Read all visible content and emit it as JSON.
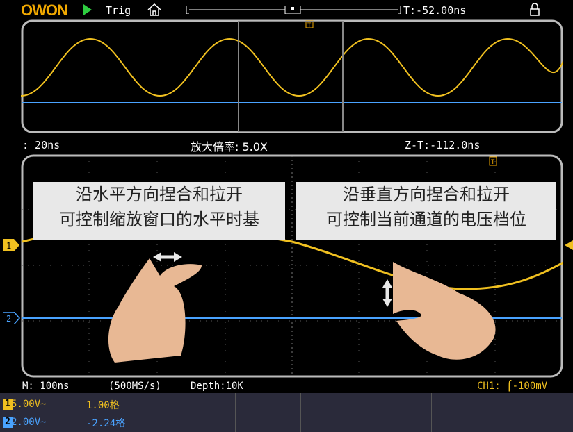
{
  "topbar": {
    "logo": "OWON",
    "trigger_state_label": "Trig",
    "time_delay": "T:-52.00ns"
  },
  "zoom_info": {
    "zoom_timebase": ": 20ns",
    "magnification": "放大倍率: 5.0X",
    "zoom_time": "Z-T:-112.0ns"
  },
  "overlays": {
    "left_line1": "沿水平方向捏合和拉开",
    "left_line2": "可控制缩放窗口的水平时基",
    "right_line1": "沿垂直方向捏合和拉开",
    "right_line2": "可控制当前通道的电压档位"
  },
  "bottom": {
    "main_timebase": "M: 100ns",
    "sample_rate": "(500MS/s)",
    "depth": "Depth:10K",
    "trigger_info": "CH1: ⌠-100mV"
  },
  "channels": [
    {
      "id": "1",
      "volts": "5.00V~",
      "offset": "1.00格",
      "color": "#f0c020"
    },
    {
      "id": "2",
      "volts": "2.00V~",
      "offset": "-2.24格",
      "color": "#4aa3ff"
    }
  ],
  "markers": {
    "ch1": "1",
    "ch2": "2",
    "trigger": "T"
  },
  "colors": {
    "ch1": "#f0c020",
    "ch2": "#4aa3ff",
    "accent": "#f0a800"
  }
}
